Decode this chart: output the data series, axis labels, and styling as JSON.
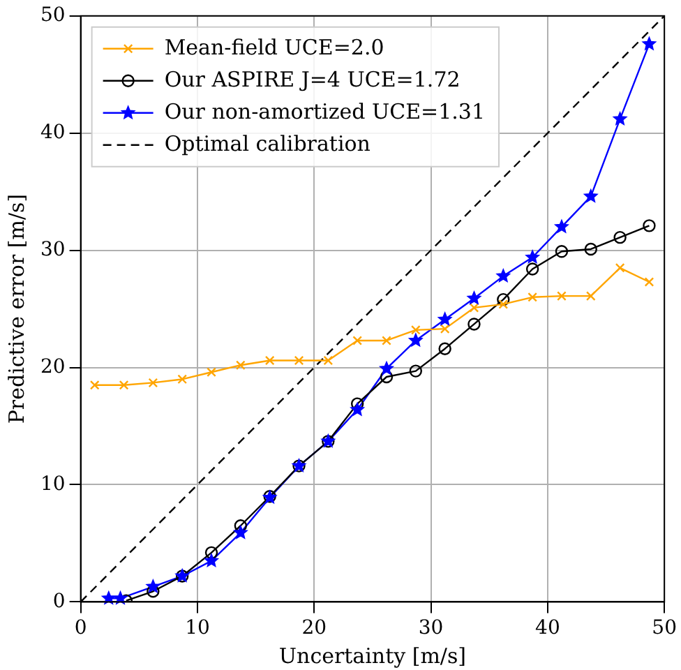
{
  "chart_data": {
    "type": "line",
    "xlabel": "Uncertainty [m/s]",
    "ylabel": "Predictive error [m/s]",
    "xlim": [
      0,
      50
    ],
    "ylim": [
      0,
      50
    ],
    "xticks": [
      0,
      10,
      20,
      30,
      40,
      50
    ],
    "yticks": [
      0,
      10,
      20,
      30,
      40,
      50
    ],
    "grid": true,
    "legend": "top left",
    "series": [
      {
        "name": "Mean-field UCE=2.0",
        "color": "#ffa500",
        "marker": "cross",
        "x": [
          1.2,
          3.7,
          6.2,
          8.7,
          11.2,
          13.7,
          16.2,
          18.7,
          21.2,
          23.7,
          26.2,
          28.7,
          31.2,
          33.7,
          36.2,
          38.7,
          41.2,
          43.7,
          46.2,
          48.7
        ],
        "values": [
          18.5,
          18.5,
          18.7,
          19.0,
          19.6,
          20.2,
          20.6,
          20.6,
          20.6,
          22.3,
          22.3,
          23.2,
          23.3,
          25.1,
          25.4,
          26.0,
          26.1,
          26.1,
          28.5,
          27.3
        ]
      },
      {
        "name": "Our ASPIRE J=4 UCE=1.72",
        "color": "#000000",
        "marker": "circle",
        "x": [
          3.9,
          6.2,
          8.7,
          11.2,
          13.7,
          16.2,
          18.7,
          21.2,
          23.7,
          26.2,
          28.7,
          31.2,
          33.7,
          36.2,
          38.7,
          41.2,
          43.7,
          46.2,
          48.7
        ],
        "values": [
          0.1,
          0.9,
          2.2,
          4.2,
          6.5,
          9.0,
          11.6,
          13.7,
          16.9,
          19.2,
          19.7,
          21.6,
          23.7,
          25.8,
          28.4,
          29.9,
          30.1,
          31.1,
          32.1
        ]
      },
      {
        "name": "Our non-amortized UCE=1.31",
        "color": "#0000ff",
        "marker": "star",
        "x": [
          2.4,
          3.4,
          6.2,
          8.7,
          11.2,
          13.7,
          16.2,
          18.7,
          21.2,
          23.7,
          26.2,
          28.7,
          31.2,
          33.7,
          36.2,
          38.7,
          41.2,
          43.7,
          46.2,
          48.7
        ],
        "values": [
          0.3,
          0.3,
          1.3,
          2.2,
          3.5,
          5.9,
          8.9,
          11.6,
          13.7,
          16.4,
          19.9,
          22.3,
          24.1,
          25.9,
          27.8,
          29.4,
          32.0,
          34.6,
          41.2,
          47.6
        ]
      },
      {
        "name": "Optimal calibration",
        "color": "#000000",
        "marker": "none",
        "line_style": "dashed",
        "x": [
          0,
          50
        ],
        "values": [
          0,
          50
        ]
      }
    ]
  }
}
